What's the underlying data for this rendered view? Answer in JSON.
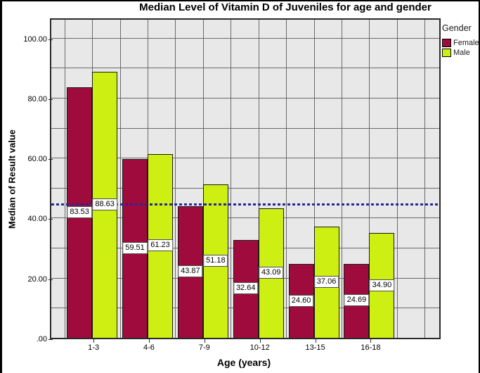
{
  "chart_data": {
    "type": "bar",
    "title": "Median Level of Vitamin D of Juveniles for age and gender",
    "xlabel": "Age (years)",
    "ylabel": "Median of Result value",
    "categories": [
      "1-3",
      "4-6",
      "7-9",
      "10-12",
      "13-15",
      "16-18"
    ],
    "series": [
      {
        "name": "Female",
        "color": "#A00B3E",
        "values": [
          83.53,
          59.51,
          43.87,
          32.64,
          24.6,
          24.69
        ]
      },
      {
        "name": "Male",
        "color": "#CDEF11",
        "values": [
          88.63,
          61.23,
          51.18,
          43.09,
          37.06,
          34.9
        ]
      }
    ],
    "ylim": [
      0,
      106
    ],
    "yticks": [
      {
        "value": 0,
        "label": ".00"
      },
      {
        "value": 20,
        "label": "20.00"
      },
      {
        "value": 40,
        "label": "40.00"
      },
      {
        "value": 60,
        "label": "60.00"
      },
      {
        "value": 80,
        "label": "80.00"
      },
      {
        "value": 100,
        "label": "100.00"
      }
    ],
    "minor_grid_interval": 10,
    "grid": "on",
    "bar_value_labels_shown": true,
    "legend": {
      "title": "Gender",
      "position": "top-right",
      "entries": [
        "Female",
        "Male"
      ]
    },
    "reference_line": {
      "value": 44.5,
      "style": "dotted",
      "color": "#26269C"
    },
    "colors": {
      "plot_background": "#E8E8E8",
      "gridline": "#6A6A6A",
      "plot_border": "#2A2A2A",
      "bar_border": "#1A1A1A",
      "value_label_bg": "#FFFFFF",
      "value_label_border": "#4D4D4D"
    }
  }
}
